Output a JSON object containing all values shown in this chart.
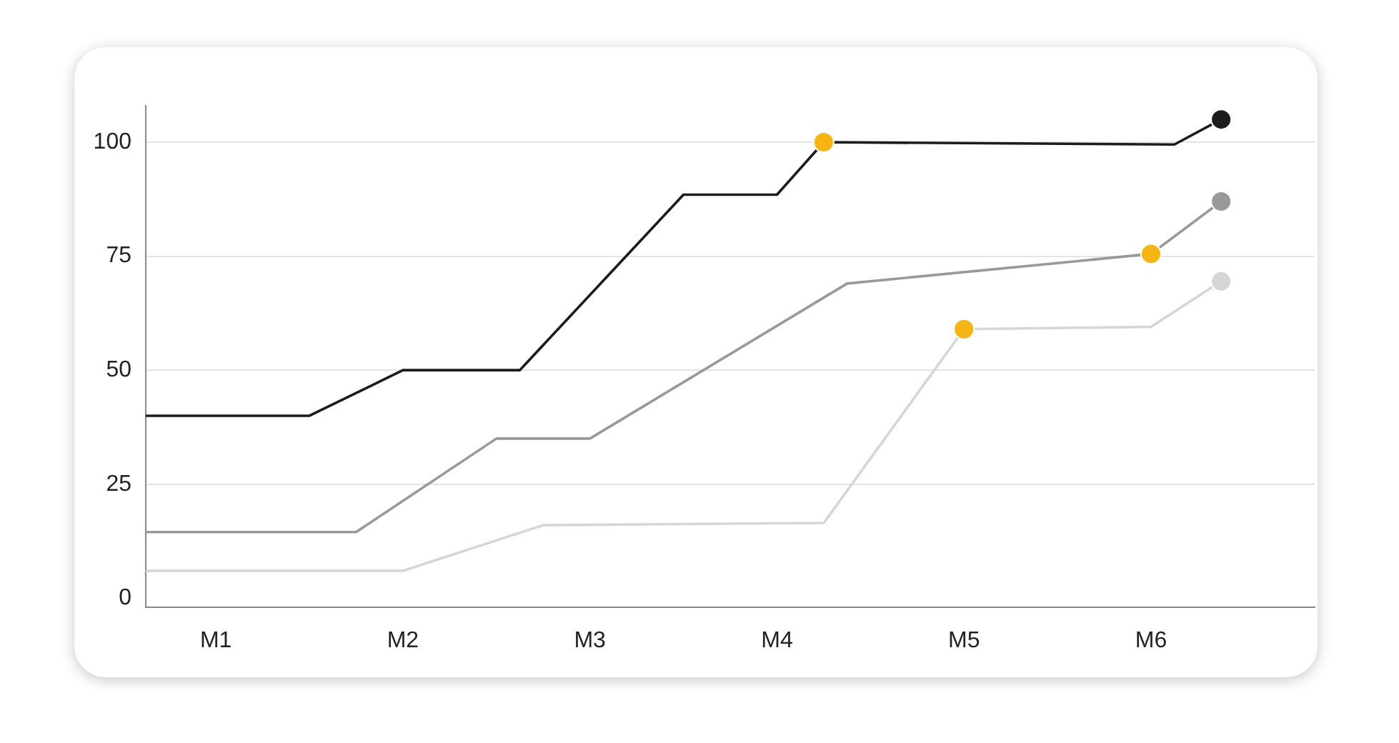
{
  "chart_data": {
    "type": "line",
    "categories": [
      null,
      null,
      null,
      "M1",
      null,
      null,
      null,
      null,
      null,
      null,
      null,
      "M2",
      null,
      null,
      null,
      null,
      null,
      null,
      null,
      "M3",
      null,
      null,
      null,
      null,
      null,
      null,
      null,
      "M4",
      null,
      null,
      null,
      null,
      null,
      null,
      null,
      "M5",
      null,
      null,
      null,
      null,
      null,
      null,
      null,
      "M6",
      null,
      null,
      null,
      null,
      null,
      null,
      null
    ],
    "ylim": [
      -2,
      108
    ],
    "yticks": [
      0,
      25,
      50,
      75,
      100
    ],
    "grid": "y",
    "series": [
      {
        "color": "#1c1c1c",
        "values": [
          40,
          null,
          null,
          null,
          null,
          null,
          null,
          40,
          null,
          null,
          null,
          50,
          null,
          null,
          null,
          null,
          50,
          null,
          null,
          null,
          null,
          null,
          null,
          88.5,
          null,
          null,
          null,
          88.5,
          null,
          100,
          null,
          null,
          null,
          null,
          null,
          null,
          null,
          null,
          null,
          null,
          null,
          null,
          null,
          null,
          99.5,
          null,
          105,
          null,
          null,
          null,
          null
        ]
      },
      {
        "color": "#999999",
        "values": [
          14.5,
          null,
          null,
          null,
          null,
          null,
          null,
          null,
          null,
          14.5,
          null,
          null,
          null,
          null,
          null,
          35,
          null,
          null,
          null,
          35,
          null,
          null,
          null,
          null,
          null,
          null,
          null,
          null,
          null,
          null,
          69,
          null,
          null,
          null,
          null,
          null,
          null,
          null,
          null,
          null,
          null,
          null,
          null,
          75.5,
          null,
          null,
          87,
          null,
          null,
          null,
          null
        ]
      },
      {
        "color": "#d6d6d6",
        "values": [
          6,
          null,
          null,
          null,
          null,
          null,
          null,
          null,
          null,
          null,
          null,
          6,
          null,
          null,
          null,
          null,
          null,
          16,
          null,
          null,
          null,
          null,
          null,
          null,
          null,
          null,
          null,
          null,
          null,
          16.5,
          null,
          null,
          null,
          null,
          null,
          59,
          null,
          null,
          null,
          null,
          null,
          null,
          null,
          59.5,
          null,
          null,
          69.5,
          null,
          null,
          null,
          null
        ]
      },
      {
        "type": "scatter",
        "color": "#1c1c1c",
        "values": [
          null,
          null,
          null,
          null,
          null,
          null,
          null,
          null,
          null,
          null,
          null,
          null,
          null,
          null,
          null,
          null,
          null,
          null,
          null,
          null,
          null,
          null,
          null,
          null,
          null,
          null,
          null,
          null,
          null,
          null,
          null,
          null,
          null,
          null,
          null,
          null,
          null,
          null,
          null,
          null,
          null,
          null,
          null,
          null,
          null,
          null,
          105,
          null,
          null,
          null,
          null
        ]
      },
      {
        "type": "scatter",
        "color": "#999999",
        "values": [
          null,
          null,
          null,
          null,
          null,
          null,
          null,
          null,
          null,
          null,
          null,
          null,
          null,
          null,
          null,
          null,
          null,
          null,
          null,
          null,
          null,
          null,
          null,
          null,
          null,
          null,
          null,
          null,
          null,
          null,
          null,
          null,
          null,
          null,
          null,
          null,
          null,
          null,
          null,
          null,
          null,
          null,
          null,
          null,
          null,
          null,
          87,
          null,
          null,
          null,
          null
        ]
      },
      {
        "type": "scatter",
        "color": "#d6d6d6",
        "values": [
          null,
          null,
          null,
          null,
          null,
          null,
          null,
          null,
          null,
          null,
          null,
          null,
          null,
          null,
          null,
          null,
          null,
          null,
          null,
          null,
          null,
          null,
          null,
          null,
          null,
          null,
          null,
          null,
          null,
          null,
          null,
          null,
          null,
          null,
          null,
          null,
          null,
          null,
          null,
          null,
          null,
          null,
          null,
          null,
          null,
          null,
          69.5,
          null,
          null,
          null,
          null
        ]
      },
      {
        "type": "scatter",
        "color": "#f7b514",
        "values": [
          null,
          null,
          null,
          null,
          null,
          null,
          null,
          null,
          null,
          null,
          null,
          null,
          null,
          null,
          null,
          null,
          null,
          null,
          null,
          null,
          null,
          null,
          null,
          null,
          null,
          null,
          null,
          null,
          null,
          100,
          null,
          null,
          null,
          null,
          null,
          59,
          null,
          null,
          null,
          null,
          null,
          null,
          null,
          75.5,
          null,
          null,
          null,
          null,
          null,
          null,
          null
        ]
      }
    ]
  }
}
